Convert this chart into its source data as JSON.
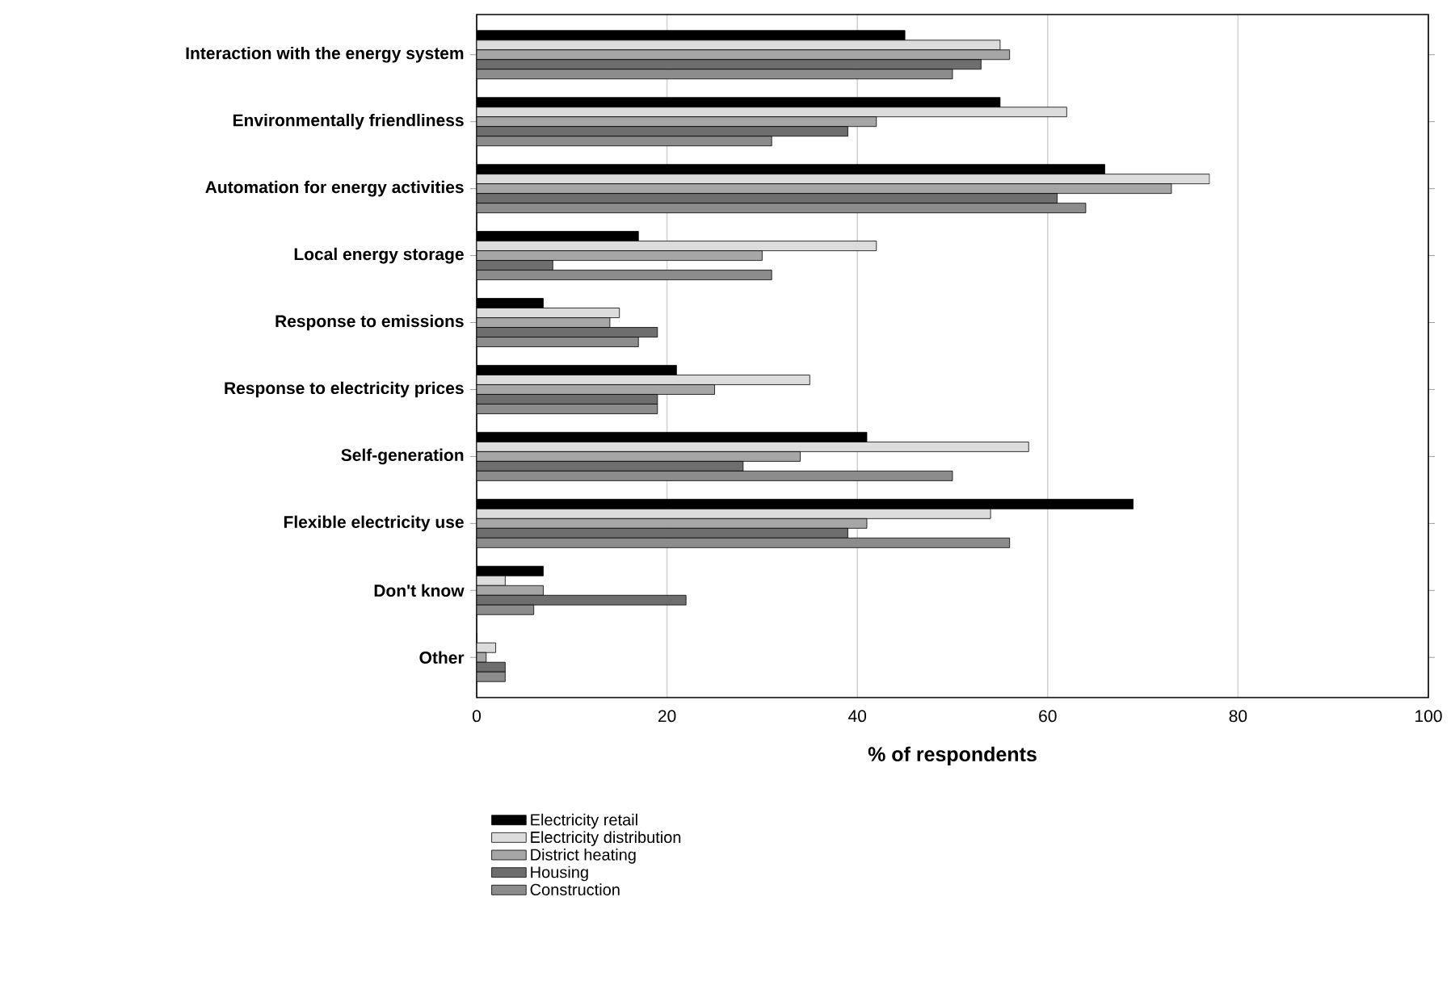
{
  "chart_data": {
    "type": "bar",
    "orientation": "horizontal",
    "xlabel": "% of respondents",
    "categories": [
      "Interaction with the energy system",
      "Environmentally friendliness",
      "Automation for energy activities",
      "Local energy storage",
      "Response to emissions",
      "Response to electricity prices",
      "Self-generation",
      "Flexible electricity use",
      "Don't know",
      "Other"
    ],
    "series": [
      {
        "name": "Electricity retail",
        "color": "#000000",
        "values": [
          45,
          55,
          66,
          17,
          7,
          21,
          41,
          69,
          7,
          0
        ]
      },
      {
        "name": "Electricity distribution",
        "color": "#dcdcdc",
        "values": [
          55,
          62,
          77,
          42,
          15,
          35,
          58,
          54,
          3,
          2
        ]
      },
      {
        "name": "District heating",
        "color": "#a6a6a6",
        "values": [
          56,
          42,
          73,
          30,
          14,
          25,
          34,
          41,
          7,
          1
        ]
      },
      {
        "name": "Housing",
        "color": "#6e6e6e",
        "values": [
          53,
          39,
          61,
          8,
          19,
          19,
          28,
          39,
          22,
          3
        ]
      },
      {
        "name": "Construction",
        "color": "#8c8c8c",
        "values": [
          50,
          31,
          64,
          31,
          17,
          19,
          50,
          56,
          6,
          3
        ]
      }
    ],
    "xlim": [
      0,
      100
    ],
    "xticks": [
      0,
      20,
      40,
      60,
      80,
      100
    ],
    "grid": "x",
    "legend": "bottom"
  }
}
